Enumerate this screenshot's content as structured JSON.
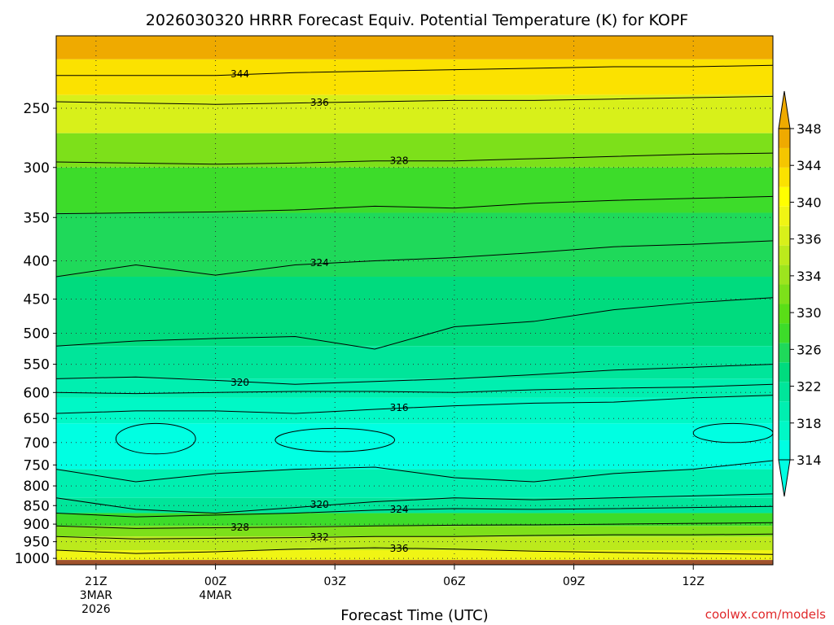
{
  "chart_data": {
    "type": "heatmap",
    "title": "2026030320 HRRR Forecast Equiv. Potential Temperature (K) for KOPF",
    "xlabel": "Forecast Time (UTC)",
    "ylabel": "",
    "credit": "coolwx.com/models",
    "x_ticks": [
      {
        "value": 21,
        "lines": [
          "21Z",
          "3MAR",
          "2026"
        ]
      },
      {
        "value": 24,
        "lines": [
          "00Z",
          "4MAR"
        ]
      },
      {
        "value": 27,
        "lines": [
          "03Z"
        ]
      },
      {
        "value": 30,
        "lines": [
          "06Z"
        ]
      },
      {
        "value": 33,
        "lines": [
          "09Z"
        ]
      },
      {
        "value": 36,
        "lines": [
          "12Z"
        ]
      }
    ],
    "xlim": [
      20,
      38
    ],
    "y_ticks": [
      250,
      300,
      350,
      400,
      450,
      500,
      550,
      600,
      650,
      700,
      750,
      800,
      850,
      900,
      950,
      1000
    ],
    "ylim": [
      200,
      1020
    ],
    "y_scale": "log",
    "grid": true,
    "colorbar": {
      "labels": [
        314,
        318,
        322,
        326,
        330,
        334,
        336,
        340,
        344,
        348
      ],
      "levels": [
        314,
        316,
        318,
        320,
        322,
        324,
        326,
        328,
        330,
        332,
        334,
        336,
        338,
        340,
        342,
        344,
        346,
        348
      ],
      "colors": [
        "#00ffe2",
        "#00f8c6",
        "#00efb0",
        "#00e59a",
        "#00db7e",
        "#1fd95a",
        "#3ddc2a",
        "#5ade17",
        "#7de01a",
        "#9de41e",
        "#bcea1c",
        "#d8f01a",
        "#f0f514",
        "#ffff00",
        "#fbe200",
        "#f5c600",
        "#efaa00"
      ],
      "extend": "both"
    },
    "series": [
      {
        "value": 344,
        "label": "344",
        "x": [
          20.0,
          22.0,
          24.0,
          26.0,
          28.0,
          30.0,
          32.0,
          34.0,
          36.0,
          38.0
        ],
        "y": [
          226,
          226,
          226,
          224,
          223,
          222,
          221,
          220,
          220,
          219
        ]
      },
      {
        "value": 336,
        "label": "336",
        "x": [
          20.0,
          22.0,
          24.0,
          26.0,
          28.0,
          30.0,
          32.0,
          34.0,
          36.0,
          38.0
        ],
        "y": [
          245,
          246,
          247,
          246,
          245,
          244,
          244,
          243,
          242,
          241
        ]
      },
      {
        "value": 328,
        "label": "328",
        "x": [
          20.0,
          22.0,
          24.0,
          26.0,
          28.0,
          30.0,
          32.0,
          34.0,
          36.0,
          38.0
        ],
        "y": [
          295,
          296,
          297,
          296,
          294,
          294,
          292,
          290,
          288,
          287
        ]
      },
      {
        "value": 326,
        "label": "",
        "x": [
          20.0,
          22.0,
          24.0,
          26.0,
          28.0,
          30.0,
          32.0,
          34.0,
          36.0,
          38.0
        ],
        "y": [
          346,
          345,
          344,
          342,
          338,
          340,
          335,
          332,
          330,
          328
        ]
      },
      {
        "value": 324,
        "label": "324",
        "x": [
          20.0,
          22.0,
          24.0,
          26.0,
          28.0,
          30.0,
          32.0,
          34.0,
          36.0,
          38.0
        ],
        "y": [
          420,
          405,
          418,
          405,
          400,
          396,
          390,
          383,
          380,
          376
        ]
      },
      {
        "value": 322,
        "label": "",
        "x": [
          20.0,
          22.0,
          24.0,
          26.0,
          28.0,
          30.0,
          32.0,
          34.0,
          36.0,
          38.0
        ],
        "y": [
          520,
          512,
          508,
          505,
          525,
          490,
          482,
          465,
          455,
          448
        ]
      },
      {
        "value": 320,
        "label": "320",
        "x": [
          20.0,
          22.0,
          24.0,
          26.0,
          28.0,
          30.0,
          32.0,
          34.0,
          36.0,
          38.0
        ],
        "y": [
          575,
          572,
          578,
          585,
          580,
          575,
          568,
          560,
          555,
          550
        ]
      },
      {
        "value": 318,
        "label": "",
        "x": [
          20.0,
          22.0,
          24.0,
          26.0,
          28.0,
          30.0,
          32.0,
          34.0,
          36.0,
          38.0
        ],
        "y": [
          600,
          602,
          600,
          598,
          598,
          600,
          595,
          592,
          590,
          585
        ]
      },
      {
        "value": 316,
        "label": "316",
        "x": [
          20.0,
          22.0,
          24.0,
          26.0,
          28.0,
          30.0,
          32.0,
          34.0,
          36.0,
          38.0
        ],
        "y": [
          640,
          635,
          635,
          640,
          632,
          625,
          620,
          618,
          610,
          605
        ]
      },
      {
        "value": 318,
        "label": "",
        "x": [
          20.0,
          22.0,
          24.0,
          26.0,
          28.0,
          30.0,
          32.0,
          34.0,
          36.0,
          38.0
        ],
        "y": [
          760,
          790,
          770,
          760,
          755,
          780,
          790,
          770,
          760,
          740
        ]
      },
      {
        "value": 320,
        "label": "320",
        "x": [
          20.0,
          22.0,
          24.0,
          26.0,
          28.0,
          30.0,
          32.0,
          34.0,
          36.0,
          38.0
        ],
        "y": [
          830,
          860,
          870,
          855,
          840,
          830,
          835,
          830,
          825,
          820
        ]
      },
      {
        "value": 324,
        "label": "324",
        "x": [
          20.0,
          22.0,
          24.0,
          26.0,
          28.0,
          30.0,
          32.0,
          34.0,
          36.0,
          38.0
        ],
        "y": [
          870,
          880,
          875,
          870,
          862,
          858,
          860,
          858,
          855,
          852
        ]
      },
      {
        "value": 328,
        "label": "328",
        "x": [
          20.0,
          22.0,
          24.0,
          26.0,
          28.0,
          30.0,
          32.0,
          34.0,
          36.0,
          38.0
        ],
        "y": [
          905,
          912,
          910,
          908,
          905,
          903,
          902,
          900,
          898,
          896
        ]
      },
      {
        "value": 332,
        "label": "332",
        "x": [
          20.0,
          22.0,
          24.0,
          26.0,
          28.0,
          30.0,
          32.0,
          34.0,
          36.0,
          38.0
        ],
        "y": [
          935,
          942,
          940,
          938,
          935,
          935,
          932,
          930,
          930,
          928
        ]
      },
      {
        "value": 336,
        "label": "336",
        "x": [
          20.0,
          22.0,
          24.0,
          26.0,
          28.0,
          30.0,
          32.0,
          34.0,
          36.0,
          38.0
        ],
        "y": [
          975,
          985,
          980,
          972,
          968,
          972,
          978,
          982,
          985,
          988
        ]
      }
    ],
    "cells": [
      {
        "v": 346,
        "x": [
          20,
          38
        ],
        "y": [
          200,
          215
        ]
      },
      {
        "v": 342,
        "x": [
          20,
          38
        ],
        "y": [
          215,
          240
        ]
      },
      {
        "v": 336,
        "x": [
          20,
          38
        ],
        "y": [
          240,
          270
        ]
      },
      {
        "v": 330,
        "x": [
          20,
          38
        ],
        "y": [
          270,
          300
        ]
      },
      {
        "v": 327,
        "x": [
          20,
          38
        ],
        "y": [
          300,
          345
        ]
      },
      {
        "v": 325,
        "x": [
          20,
          38
        ],
        "y": [
          345,
          420
        ]
      },
      {
        "v": 323,
        "x": [
          20,
          38
        ],
        "y": [
          420,
          520
        ]
      },
      {
        "v": 321,
        "x": [
          20,
          38
        ],
        "y": [
          520,
          575
        ]
      },
      {
        "v": 319,
        "x": [
          20,
          38
        ],
        "y": [
          575,
          610
        ]
      },
      {
        "v": 317,
        "x": [
          20,
          38
        ],
        "y": [
          610,
          660
        ]
      },
      {
        "v": 315,
        "x": [
          20,
          38
        ],
        "y": [
          660,
          760
        ]
      },
      {
        "v": 318,
        "x": [
          20,
          38
        ],
        "y": [
          760,
          830
        ]
      },
      {
        "v": 321,
        "x": [
          20,
          38
        ],
        "y": [
          830,
          870
        ]
      },
      {
        "v": 326,
        "x": [
          20,
          38
        ],
        "y": [
          870,
          905
        ]
      },
      {
        "v": 330,
        "x": [
          20,
          38
        ],
        "y": [
          905,
          935
        ]
      },
      {
        "v": 334,
        "x": [
          20,
          38
        ],
        "y": [
          935,
          975
        ]
      },
      {
        "v": 338,
        "x": [
          20,
          38
        ],
        "y": [
          975,
          1005
        ]
      }
    ],
    "cold_pockets": [
      {
        "v": 314,
        "x": [
          21.5,
          23.5
        ],
        "y": [
          660,
          725
        ]
      },
      {
        "v": 314,
        "x": [
          25.5,
          28.5
        ],
        "y": [
          670,
          720
        ]
      },
      {
        "v": 314,
        "x": [
          36.0,
          38.0
        ],
        "y": [
          660,
          700
        ]
      }
    ],
    "ground": {
      "color": "#a0522d",
      "y": [
        1005,
        1020
      ]
    }
  }
}
